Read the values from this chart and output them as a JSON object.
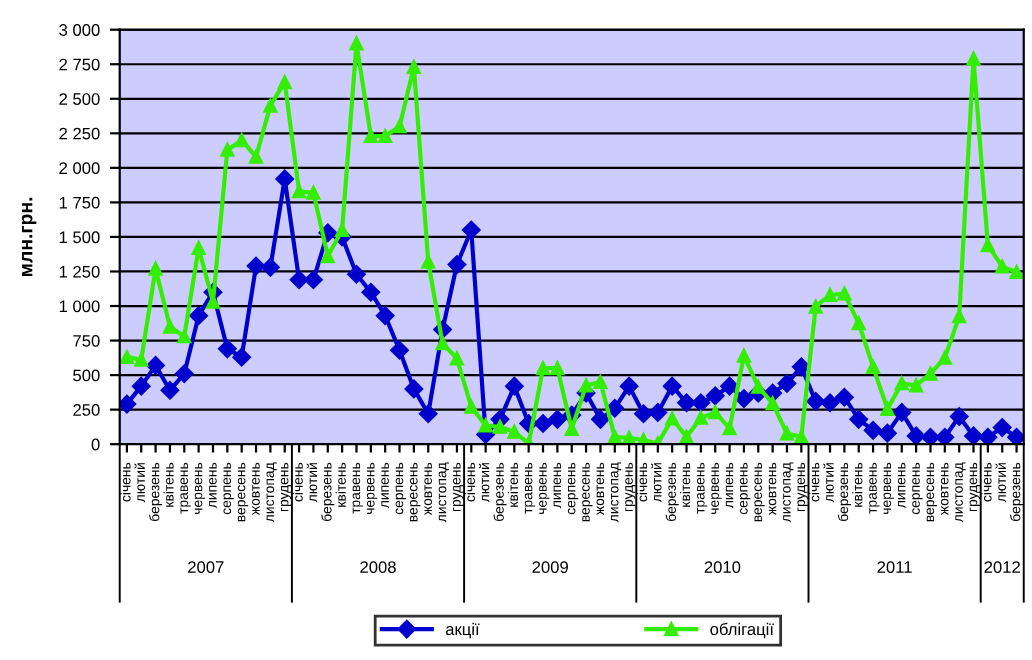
{
  "chart_data": {
    "type": "line",
    "ylabel": "млн.грн.",
    "categories": [
      "січень",
      "лютий",
      "березень",
      "квітень",
      "травень",
      "червень",
      "липень",
      "серпень",
      "вересень",
      "жовтень",
      "листопад",
      "грудень",
      "січень",
      "лютий",
      "березень",
      "квітень",
      "травень",
      "червень",
      "липень",
      "серпень",
      "вересень",
      "жовтень",
      "листопад",
      "грудень",
      "січень",
      "лютий",
      "березень",
      "квітень",
      "травень",
      "червень",
      "липень",
      "серпень",
      "вересень",
      "жовтень",
      "листопад",
      "грудень",
      "січень",
      "лютий",
      "березень",
      "квітень",
      "травень",
      "червень",
      "липень",
      "серпень",
      "вересень",
      "жовтень",
      "листопад",
      "грудень",
      "січень",
      "лютий",
      "березень",
      "квітень",
      "травень",
      "червень",
      "липень",
      "серпень",
      "вересень",
      "жовтень",
      "листопад",
      "грудень",
      "січень",
      "лютий",
      "березень"
    ],
    "annotations": [
      "2007",
      "2008",
      "2009",
      "2010",
      "2011",
      "2012"
    ],
    "series": [
      {
        "name": "акції",
        "color": "#0000cc",
        "marker": "diamond",
        "values": [
          290,
          420,
          570,
          390,
          510,
          930,
          1100,
          690,
          630,
          1290,
          1280,
          1920,
          1190,
          1190,
          1530,
          1500,
          1230,
          1100,
          930,
          680,
          400,
          220,
          830,
          1300,
          1550,
          70,
          180,
          420,
          150,
          150,
          180,
          210,
          370,
          180,
          260,
          420,
          220,
          230,
          420,
          300,
          300,
          350,
          420,
          330,
          370,
          370,
          440,
          560,
          310,
          300,
          340,
          180,
          100,
          80,
          230,
          60,
          50,
          50,
          200,
          60,
          50,
          120,
          50
        ]
      },
      {
        "name": "облігації",
        "color": "#33ee00",
        "marker": "triangle",
        "values": [
          630,
          610,
          1270,
          850,
          780,
          1420,
          1030,
          2130,
          2200,
          2080,
          2450,
          2620,
          1830,
          1820,
          1360,
          1550,
          2900,
          2230,
          2230,
          2300,
          2730,
          1320,
          730,
          620,
          270,
          135,
          125,
          90,
          5,
          550,
          550,
          110,
          425,
          450,
          53,
          45,
          30,
          5,
          185,
          53,
          190,
          230,
          115,
          640,
          415,
          295,
          77,
          53,
          995,
          1080,
          1090,
          875,
          560,
          255,
          440,
          425,
          510,
          625,
          925,
          2790,
          1440,
          1285,
          1245
        ]
      }
    ],
    "ylim": [
      0,
      3000
    ],
    "yticks": [
      0,
      {
        "value": 250,
        "label": "250"
      },
      {
        "value": 500,
        "label": "500"
      },
      {
        "value": 750,
        "label": "750"
      },
      {
        "value": 1000,
        "label": "1 000"
      },
      {
        "value": 1250,
        "label": "1 250"
      },
      {
        "value": 1500,
        "label": "1 500"
      },
      {
        "value": 1750,
        "label": "1 750"
      },
      {
        "value": 2000,
        "label": "2 000"
      },
      {
        "value": 2250,
        "label": "2 250"
      },
      {
        "value": 2500,
        "label": "2 500"
      },
      {
        "value": 2750,
        "label": "2 750"
      },
      {
        "value": 3000,
        "label": "3 000"
      }
    ],
    "grid": "y",
    "legend": "bottom",
    "line_style": "solid"
  }
}
